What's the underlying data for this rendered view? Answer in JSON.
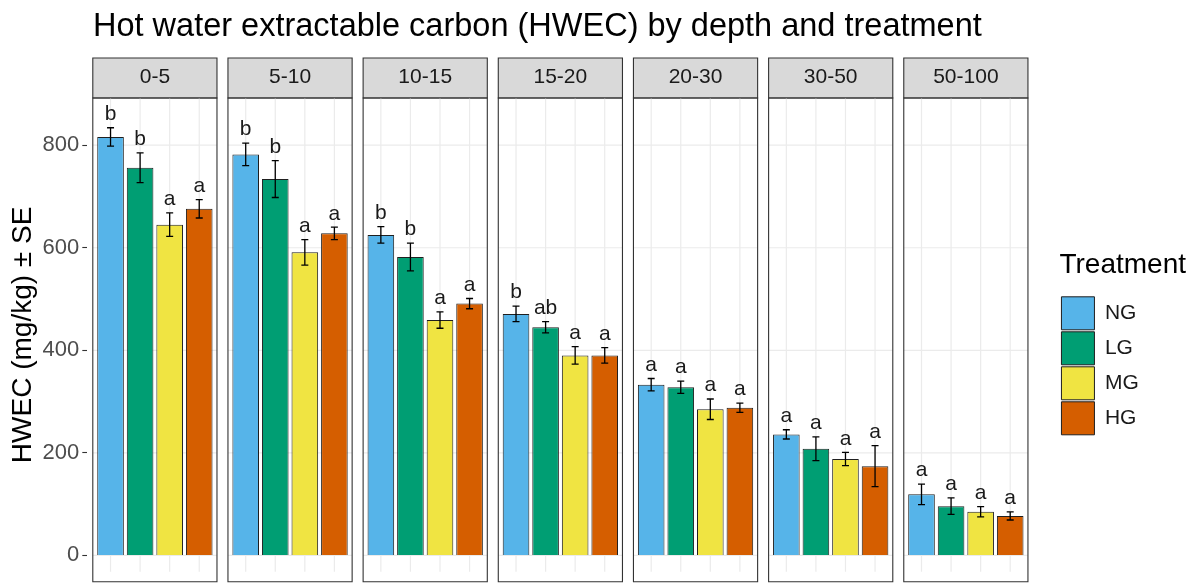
{
  "chart_data": {
    "type": "bar",
    "title": "Hot water extractable carbon (HWEC) by depth and treatment",
    "ylabel": "HWEC (mg/kg) ± SE",
    "legend_title": "Treatment",
    "categories": [
      "0-5",
      "5-10",
      "10-15",
      "15-20",
      "20-30",
      "30-50",
      "50-100"
    ],
    "series": [
      {
        "name": "NG",
        "color": "#56b4e9",
        "values": [
          816,
          782,
          625,
          471,
          333,
          236,
          119
        ],
        "errors": [
          18,
          22,
          16,
          15,
          12,
          9,
          20
        ],
        "value_labels": [
          "b",
          "b",
          "b",
          "b",
          "a",
          "a",
          "a"
        ]
      },
      {
        "name": "LG",
        "color": "#009e73",
        "values": [
          756,
          734,
          582,
          445,
          328,
          208,
          96
        ],
        "errors": [
          29,
          36,
          27,
          11,
          12,
          23,
          16
        ],
        "value_labels": [
          "b",
          "b",
          "b",
          "ab",
          "a",
          "a",
          "a"
        ]
      },
      {
        "name": "MG",
        "color": "#f0e442",
        "values": [
          645,
          591,
          459,
          390,
          285,
          188,
          85
        ],
        "errors": [
          23,
          25,
          16,
          17,
          20,
          13,
          10
        ],
        "value_labels": [
          "a",
          "a",
          "a",
          "a",
          "a",
          "a",
          "a"
        ]
      },
      {
        "name": "HG",
        "color": "#d55e00",
        "values": [
          676,
          628,
          491,
          390,
          288,
          174,
          77
        ],
        "errors": [
          18,
          12,
          10,
          15,
          9,
          40,
          8
        ],
        "value_labels": [
          "a",
          "a",
          "a",
          "a",
          "a",
          "a",
          "a"
        ]
      }
    ],
    "ylim": [
      -32,
      892
    ],
    "yticks": [
      0,
      200,
      400,
      600,
      800
    ],
    "grid": true,
    "legend": "right"
  }
}
